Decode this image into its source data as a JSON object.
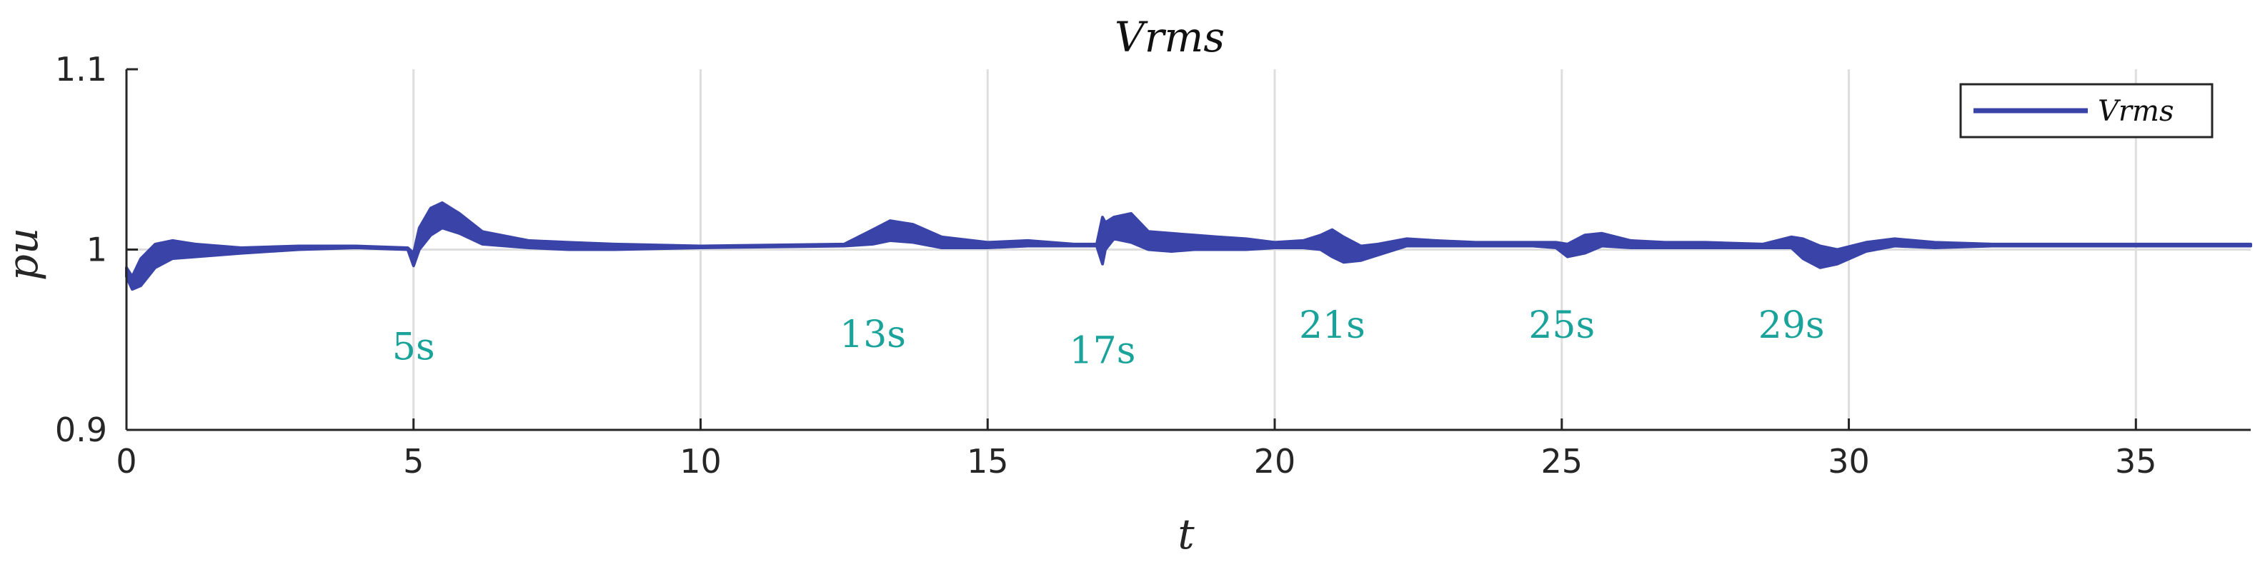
{
  "chart_data": {
    "type": "line",
    "title": "Vrms",
    "xlabel": "t",
    "ylabel": "pu",
    "xlim": [
      0,
      37
    ],
    "ylim": [
      0.9,
      1.1
    ],
    "xticks": [
      0,
      5,
      10,
      15,
      20,
      25,
      30,
      35
    ],
    "yticks": [
      0.9,
      1,
      1.1
    ],
    "ytick_labels": [
      "0.9",
      "1",
      "1.1"
    ],
    "grid": true,
    "legend": {
      "position": "top-right",
      "entries": [
        "Vrms"
      ]
    },
    "series": [
      {
        "name": "Vrms",
        "color": "#3a44a8",
        "envelope": {
          "t": [
            0,
            0.1,
            0.25,
            0.5,
            0.8,
            1.2,
            2,
            3,
            4,
            4.9,
            5.0,
            5.1,
            5.3,
            5.5,
            5.8,
            6.2,
            7,
            7.7,
            8.5,
            10,
            12.5,
            13,
            13.3,
            13.7,
            14.2,
            15,
            15.7,
            16.5,
            16.9,
            17.0,
            17.05,
            17.2,
            17.5,
            17.8,
            18.2,
            18.6,
            19,
            19.5,
            20,
            20.5,
            20.8,
            21.0,
            21.2,
            21.5,
            21.8,
            22.3,
            22.8,
            23.5,
            24.5,
            24.9,
            25.1,
            25.4,
            25.7,
            26.2,
            26.8,
            27.5,
            28.5,
            29.0,
            29.2,
            29.5,
            29.8,
            30.3,
            30.8,
            31.5,
            32.5,
            33.5,
            34.5,
            35.5,
            37
          ],
          "upper": [
            0.99,
            0.985,
            0.995,
            1.003,
            1.005,
            1.003,
            1.001,
            1.002,
            1.002,
            1.001,
            0.998,
            1.012,
            1.023,
            1.026,
            1.02,
            1.01,
            1.005,
            1.004,
            1.003,
            1.002,
            1.003,
            1.011,
            1.016,
            1.014,
            1.007,
            1.004,
            1.005,
            1.003,
            1.003,
            1.018,
            1.015,
            1.018,
            1.02,
            1.01,
            1.009,
            1.008,
            1.007,
            1.006,
            1.004,
            1.005,
            1.008,
            1.011,
            1.007,
            1.002,
            1.003,
            1.006,
            1.005,
            1.004,
            1.004,
            1.004,
            1.003,
            1.008,
            1.009,
            1.005,
            1.004,
            1.004,
            1.003,
            1.007,
            1.006,
            1.002,
            1.0,
            1.004,
            1.006,
            1.004,
            1.003,
            1.003,
            1.003,
            1.003,
            1.003
          ],
          "lower": [
            0.985,
            0.978,
            0.98,
            0.99,
            0.995,
            0.996,
            0.998,
            1.0,
            1.001,
            1.0,
            0.991,
            1.0,
            1.008,
            1.012,
            1.009,
            1.003,
            1.001,
            1.0,
            1.0,
            1.001,
            1.002,
            1.003,
            1.005,
            1.004,
            1.001,
            1.001,
            1.002,
            1.002,
            1.002,
            0.992,
            1.0,
            1.006,
            1.004,
            1.0,
            0.999,
            1.0,
            1.0,
            1.0,
            1.001,
            1.001,
            1.0,
            0.996,
            0.993,
            0.994,
            0.997,
            1.002,
            1.002,
            1.002,
            1.002,
            1.001,
            0.996,
            0.998,
            1.002,
            1.001,
            1.001,
            1.001,
            1.001,
            1.001,
            0.995,
            0.99,
            0.992,
            0.999,
            1.002,
            1.001,
            1.002,
            1.002,
            1.002,
            1.002,
            1.002
          ]
        }
      }
    ],
    "annotations": [
      {
        "text": "5s",
        "x": 5.0,
        "y": 0.939
      },
      {
        "text": "13s",
        "x": 13.0,
        "y": 0.946
      },
      {
        "text": "17s",
        "x": 17.0,
        "y": 0.937
      },
      {
        "text": "21s",
        "x": 21.0,
        "y": 0.951
      },
      {
        "text": "25s",
        "x": 25.0,
        "y": 0.951
      },
      {
        "text": "29s",
        "x": 29.0,
        "y": 0.951
      }
    ]
  }
}
